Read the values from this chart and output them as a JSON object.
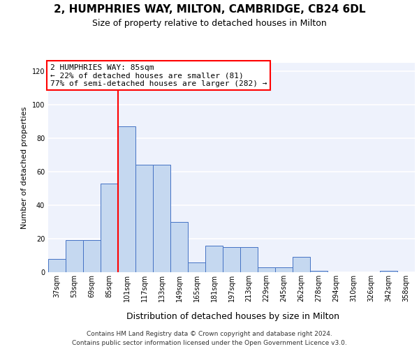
{
  "title": "2, HUMPHRIES WAY, MILTON, CAMBRIDGE, CB24 6DL",
  "subtitle": "Size of property relative to detached houses in Milton",
  "xlabel": "Distribution of detached houses by size in Milton",
  "ylabel": "Number of detached properties",
  "categories": [
    "37sqm",
    "53sqm",
    "69sqm",
    "85sqm",
    "101sqm",
    "117sqm",
    "133sqm",
    "149sqm",
    "165sqm",
    "181sqm",
    "197sqm",
    "213sqm",
    "229sqm",
    "245sqm",
    "262sqm",
    "278sqm",
    "294sqm",
    "310sqm",
    "326sqm",
    "342sqm",
    "358sqm"
  ],
  "values": [
    8,
    19,
    19,
    53,
    87,
    64,
    64,
    30,
    6,
    16,
    15,
    15,
    3,
    3,
    9,
    1,
    0,
    0,
    0,
    1,
    0
  ],
  "bar_color": "#c5d8f0",
  "bar_edge_color": "#4472c4",
  "vline_x_index": 3,
  "vline_color": "red",
  "ylim": [
    0,
    125
  ],
  "yticks": [
    0,
    20,
    40,
    60,
    80,
    100,
    120
  ],
  "annotation_title": "2 HUMPHRIES WAY: 85sqm",
  "annotation_line1": "← 22% of detached houses are smaller (81)",
  "annotation_line2": "77% of semi-detached houses are larger (282) →",
  "annotation_box_color": "red",
  "footer_line1": "Contains HM Land Registry data © Crown copyright and database right 2024.",
  "footer_line2": "Contains public sector information licensed under the Open Government Licence v3.0.",
  "background_color": "#eef2fc",
  "grid_color": "#ffffff",
  "title_fontsize": 11,
  "subtitle_fontsize": 9,
  "xlabel_fontsize": 9,
  "ylabel_fontsize": 8,
  "tick_fontsize": 7,
  "annotation_fontsize": 8,
  "footer_fontsize": 6.5
}
